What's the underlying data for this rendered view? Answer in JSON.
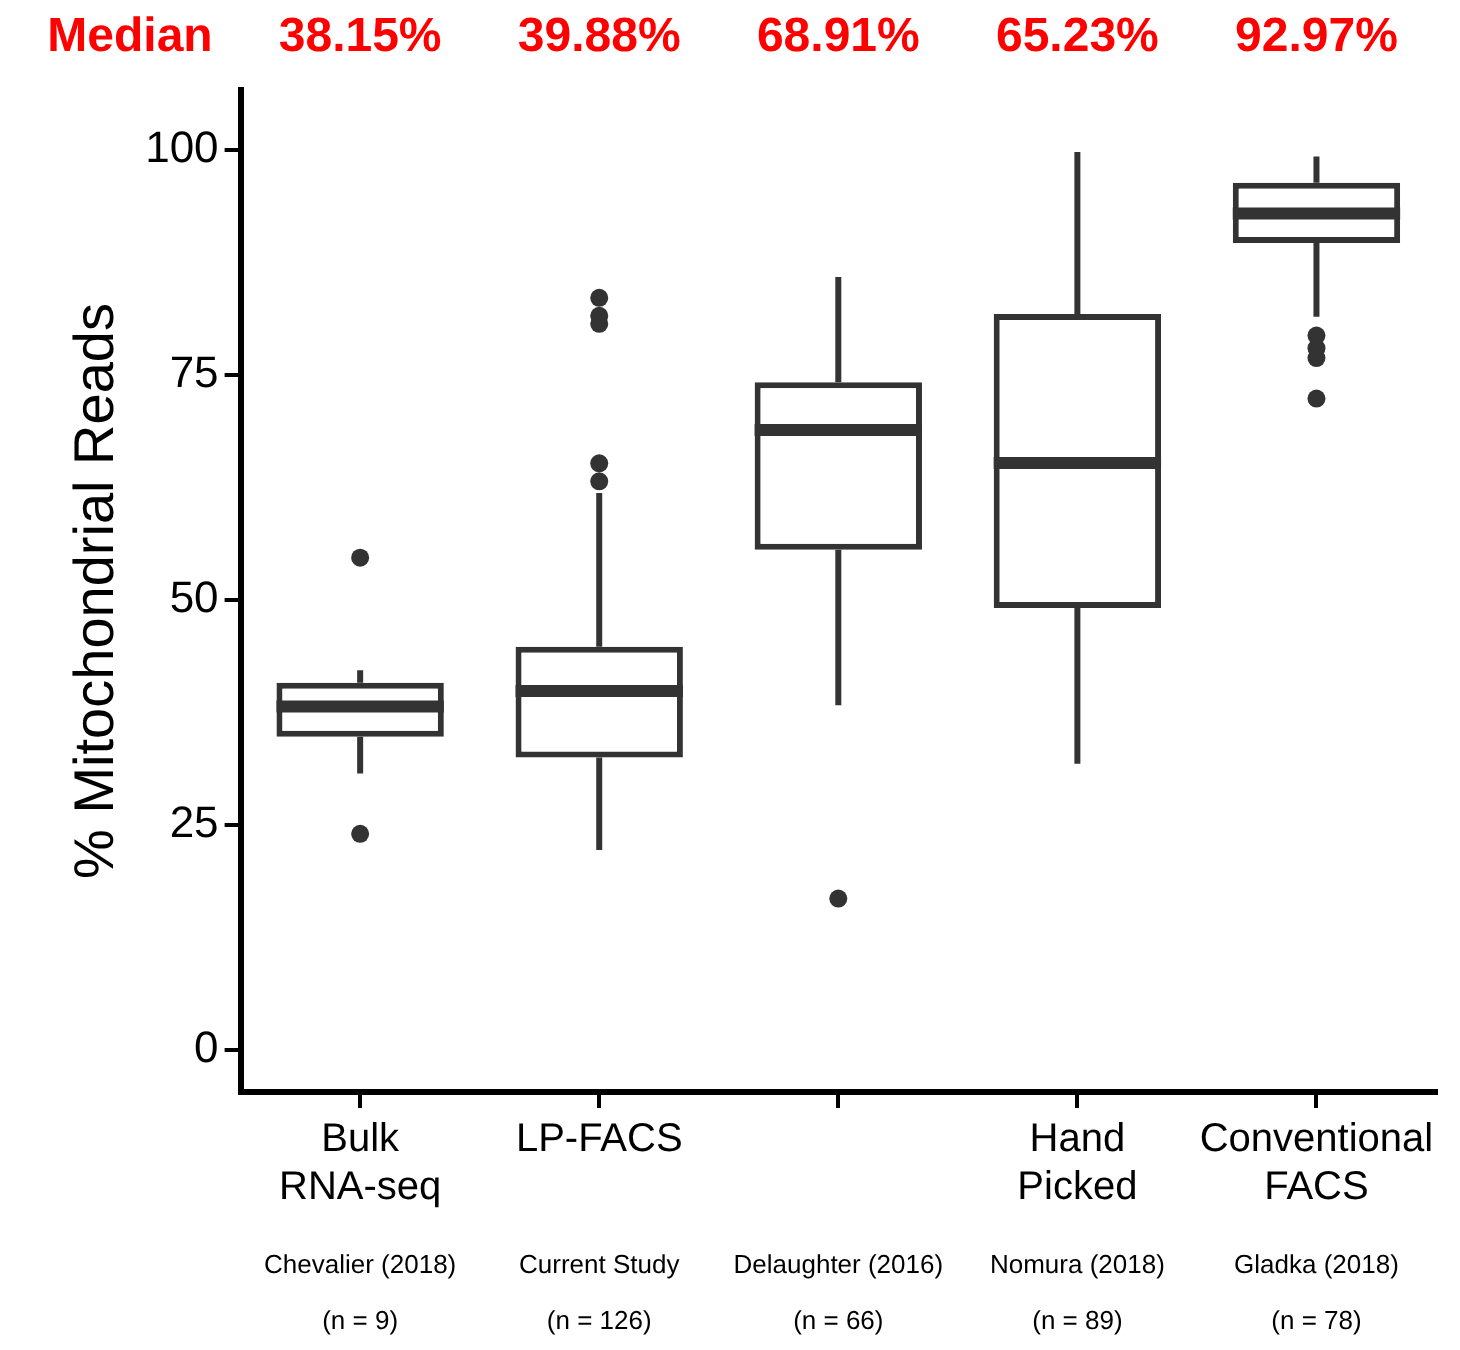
{
  "chart_data": {
    "type": "box",
    "ylabel": "% Mitochondrial Reads",
    "categories": [
      "Bulk RNA-seq",
      "LP-FACS",
      null,
      "Hand Picked",
      "Conventional FACS"
    ],
    "boxes": [
      {
        "low": 30.7,
        "q1": 34.8,
        "median": 38.15,
        "q3": 40.8,
        "high": 42.2,
        "outliers": [
          54.7,
          24
        ]
      },
      {
        "low": 22.2,
        "q1": 32.5,
        "median": 39.88,
        "q3": 44.8,
        "high": 61.9,
        "outliers": [
          83.6,
          81.6,
          80.7,
          65.2,
          63.2
        ]
      },
      {
        "low": 38.3,
        "q1": 55.6,
        "median": 68.91,
        "q3": 74.2,
        "high": 85.9,
        "outliers": [
          16.8
        ]
      },
      {
        "low": 31.8,
        "q1": 49.1,
        "median": 65.23,
        "q3": 81.8,
        "high": 99.8
      },
      {
        "low": 81.5,
        "q1": 89.7,
        "median": 92.97,
        "q3": 96.4,
        "high": 99.3,
        "outliers": [
          79.4,
          78,
          76.9,
          72.4
        ]
      }
    ],
    "color": "#333333",
    "ylim": [
      -4.7,
      106.7
    ],
    "yticks": [
      0,
      25,
      50,
      75,
      100
    ],
    "grid": false,
    "legend": false,
    "annotations": [
      "Median",
      "38.15%",
      "39.88%",
      "68.91%",
      "65.23%",
      "92.97%",
      "Chevalier (2018)",
      "(n = 9)",
      "Current Study",
      "(n = 126)",
      "Delaughter (2016)",
      "(n = 66)",
      "Nomura (2018)",
      "(n = 89)",
      "Gladka (2018)",
      "(n = 78)"
    ]
  }
}
